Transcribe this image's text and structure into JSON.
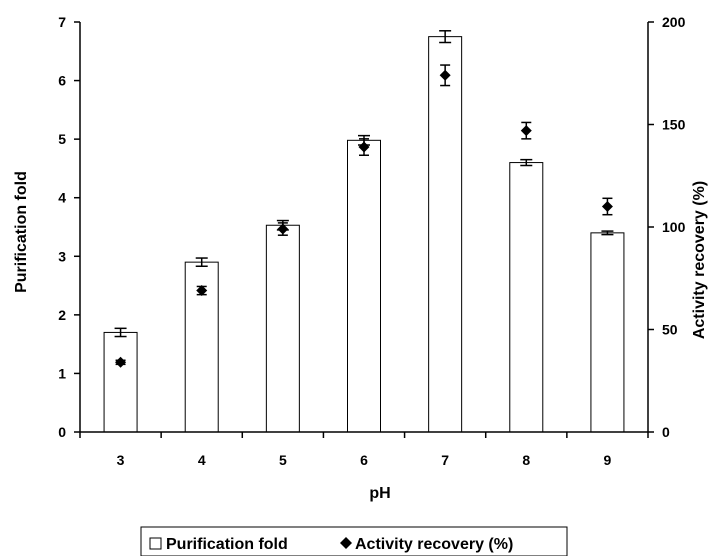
{
  "chart_data": {
    "type": "bar",
    "xlabel": "pH",
    "ylabel": "Purification fold",
    "y2label": "Activity recovery (%)",
    "ylim": [
      0,
      7
    ],
    "y2lim": [
      0,
      200
    ],
    "yticks": [
      "0",
      "1",
      "2",
      "3",
      "4",
      "5",
      "6",
      "7"
    ],
    "y2ticks": [
      "0",
      "50",
      "100",
      "150",
      "200"
    ],
    "categories": [
      "3",
      "4",
      "5",
      "6",
      "7",
      "8",
      "9"
    ],
    "series": [
      {
        "name": "Purification fold",
        "type": "bar",
        "axis": "left",
        "values": [
          1.7,
          2.9,
          3.53,
          4.98,
          6.75,
          4.6,
          3.4
        ],
        "errors": [
          0.07,
          0.07,
          0.08,
          0.08,
          0.1,
          0.05,
          0.03
        ],
        "color": "#ffffff"
      },
      {
        "name": "Activity recovery (%)",
        "type": "scatter",
        "marker": "diamond",
        "axis": "right",
        "values": [
          34,
          69,
          99,
          139,
          174,
          147,
          110
        ],
        "errors": [
          1,
          2,
          3,
          4,
          5,
          4,
          4
        ],
        "color": "#000000"
      }
    ],
    "legend": {
      "position": "bottom",
      "items": [
        "Purification fold",
        "Activity recovery (%)"
      ]
    }
  }
}
